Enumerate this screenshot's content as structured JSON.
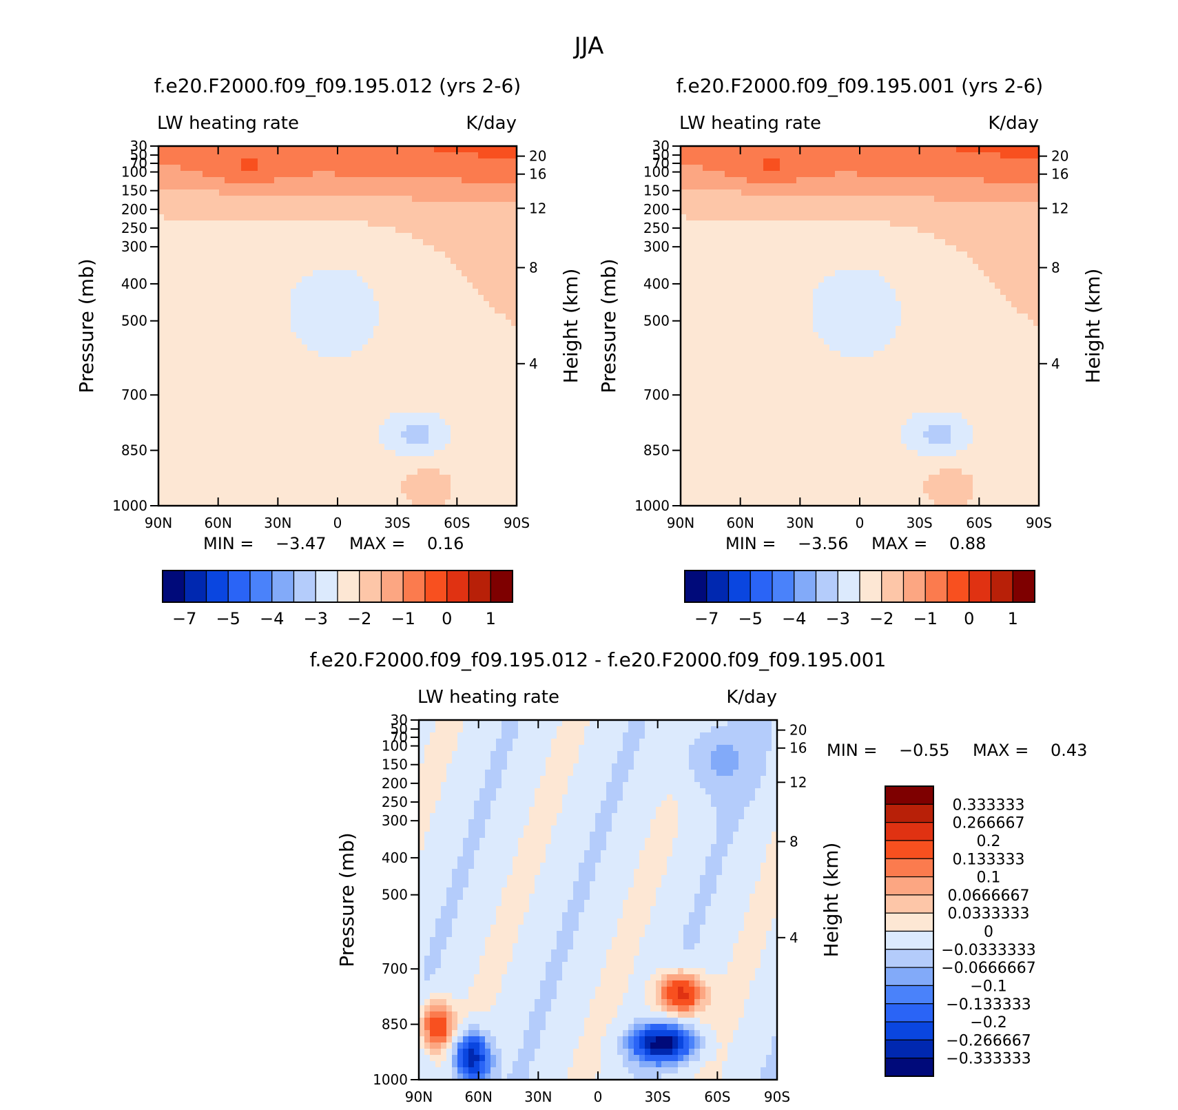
{
  "season_title": "JJA",
  "chart_data": [
    {
      "type": "heatmap",
      "id": "panel-1",
      "title": "f.e20.F2000.f09_f09.195.012 (yrs 2-6)",
      "left_label": "LW heating rate",
      "right_label": "K/day",
      "xlabel": "",
      "ylabel": "Pressure (mb)",
      "y2label": "Height (km)",
      "x_ticks": [
        "90N",
        "60N",
        "30N",
        "0",
        "30S",
        "60S",
        "90S"
      ],
      "y_ticks": [
        "30",
        "50",
        "70",
        "100",
        "150",
        "200",
        "250",
        "300",
        "400",
        "500",
        "700",
        "850",
        "1000"
      ],
      "y2_ticks": [
        "20",
        "16",
        "12",
        "8",
        "4"
      ],
      "min_label": "MIN =",
      "min_value": "-3.47",
      "max_label": "MAX =",
      "max_value": "0.16",
      "colorbar_labels": [
        "-7",
        "-5",
        "-4",
        "-3",
        "-2",
        "-1",
        "0",
        "1"
      ]
    },
    {
      "type": "heatmap",
      "id": "panel-2",
      "title": "f.e20.F2000.f09_f09.195.001 (yrs 2-6)",
      "left_label": "LW heating rate",
      "right_label": "K/day",
      "xlabel": "",
      "ylabel": "Pressure (mb)",
      "y2label": "Height (km)",
      "x_ticks": [
        "90N",
        "60N",
        "30N",
        "0",
        "30S",
        "60S",
        "90S"
      ],
      "y_ticks": [
        "30",
        "50",
        "70",
        "100",
        "150",
        "200",
        "250",
        "300",
        "400",
        "500",
        "700",
        "850",
        "1000"
      ],
      "y2_ticks": [
        "20",
        "16",
        "12",
        "8",
        "4"
      ],
      "min_label": "MIN =",
      "min_value": "-3.56",
      "max_label": "MAX =",
      "max_value": "0.88",
      "colorbar_labels": [
        "-7",
        "-5",
        "-4",
        "-3",
        "-2",
        "-1",
        "0",
        "1"
      ]
    },
    {
      "type": "heatmap",
      "id": "panel-diff",
      "title": "f.e20.F2000.f09_f09.195.012 - f.e20.F2000.f09_f09.195.001",
      "left_label": "LW heating rate",
      "right_label": "K/day",
      "xlabel": "",
      "ylabel": "Pressure (mb)",
      "y2label": "Height (km)",
      "x_ticks": [
        "90N",
        "60N",
        "30N",
        "0",
        "30S",
        "60S",
        "90S"
      ],
      "y_ticks": [
        "30",
        "50",
        "70",
        "100",
        "150",
        "200",
        "250",
        "300",
        "400",
        "500",
        "700",
        "850",
        "1000"
      ],
      "y2_ticks": [
        "20",
        "16",
        "12",
        "8",
        "4"
      ],
      "min_label": "MIN =",
      "min_value": "-0.55",
      "max_label": "MAX =",
      "max_value": "0.43",
      "colorbar_labels": [
        "0.333333",
        "0.266667",
        "0.2",
        "0.133333",
        "0.1",
        "0.0666667",
        "0.0333333",
        "0",
        "-0.0333333",
        "-0.0666667",
        "-0.1",
        "-0.133333",
        "-0.2",
        "-0.266667",
        "-0.333333"
      ]
    }
  ],
  "colors": {
    "full_scale": [
      "#000a7a",
      "#0028b0",
      "#0a46e0",
      "#2a64f6",
      "#4a82fa",
      "#82aaf9",
      "#b4ccfb",
      "#dceafd",
      "#fde7d4",
      "#fdc6a8",
      "#fca682",
      "#fb7b4e",
      "#f8501f",
      "#e03212",
      "#b82008",
      "#7e0000"
    ],
    "diff_scale": [
      "#000a7a",
      "#0028b0",
      "#0a46e0",
      "#2a64f6",
      "#4a82fa",
      "#82aaf9",
      "#b4ccfb",
      "#dceafd",
      "#fde7d4",
      "#fdc6a8",
      "#fca682",
      "#fb7b4e",
      "#f8501f",
      "#e03212",
      "#b82008",
      "#7e0000"
    ]
  }
}
